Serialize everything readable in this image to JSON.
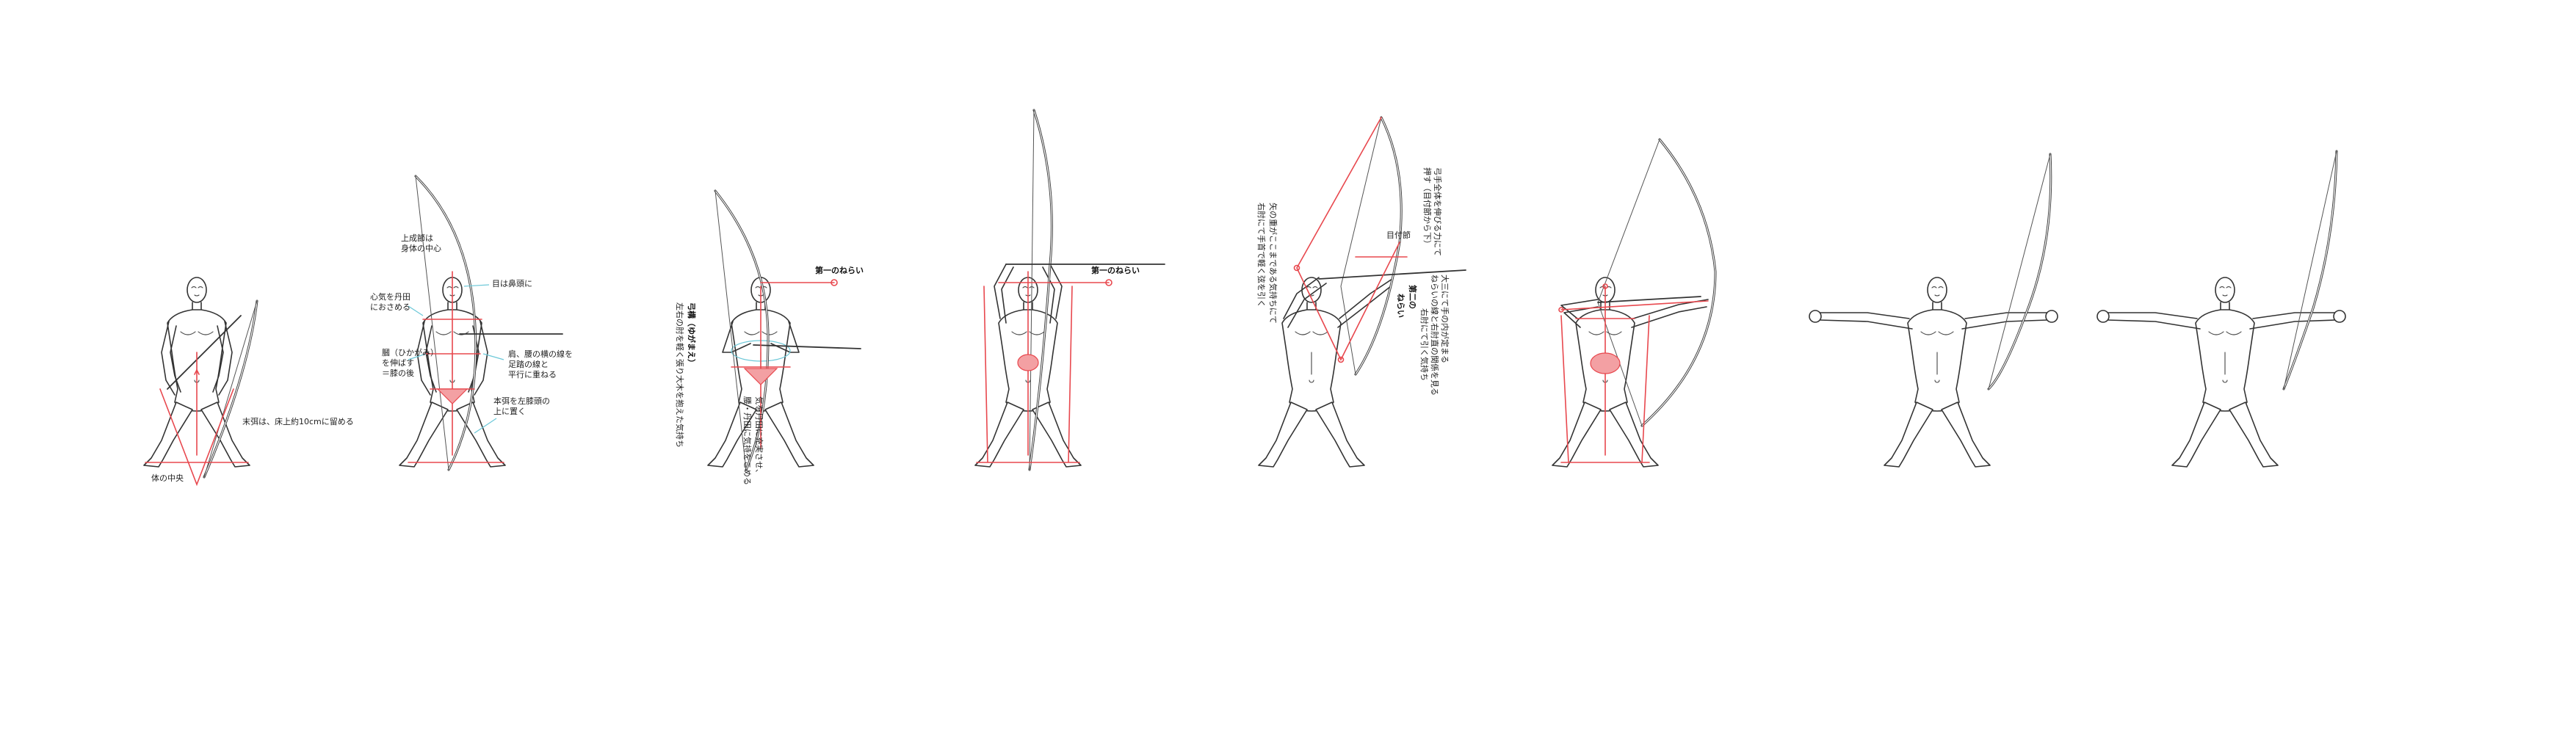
{
  "colors": {
    "ink": "#333333",
    "guide": "#e8484e",
    "guide_fill": "#f3a0a3",
    "accent": "#6cc8d8"
  },
  "stages": [
    {
      "labels": {
        "a": "末弭は、床上約10cmに留める",
        "b": "体の中央"
      }
    },
    {
      "labels": {
        "a": "上成節は",
        "b": "身体の中心",
        "c": "心気を丹田",
        "d": "におさめる",
        "e": "目は鼻頭に",
        "f": "肩、腰の横の線を",
        "g": "足踏の線と",
        "h": "平行に重ねる",
        "i": "膕（ひかがみ）",
        "j": "を伸ばす",
        "k": "＝膝の後",
        "l": "本弭を左膝頭の",
        "m": "上に置く"
      }
    },
    {
      "labels": {
        "a": "第一のねらい",
        "b": "弓構（ゆがまえ）",
        "c": "左右の肘を軽く張り大木を抱えた気持ち",
        "d": "気を丹田に充実させ、",
        "e": "腰・丹田に気持をこめる"
      }
    },
    {
      "labels": {
        "a": "第一のねらい"
      }
    },
    {
      "labels": {
        "a": "弓手全体を伸びる力にて",
        "b": "押す（目付節から下）",
        "c": "矢の重がここまである気持ちにて",
        "d": "右肘にて手首で軽く弦を引く",
        "e": "目付節",
        "f": "第二の",
        "g": "ねらい",
        "h": "大三にて手の内が定まる",
        "i": "ねらいの線と右肘直の関係を見る",
        "j": "右肘にて引く気持ち"
      }
    },
    {
      "labels": {}
    },
    {
      "labels": {}
    },
    {
      "labels": {}
    }
  ]
}
